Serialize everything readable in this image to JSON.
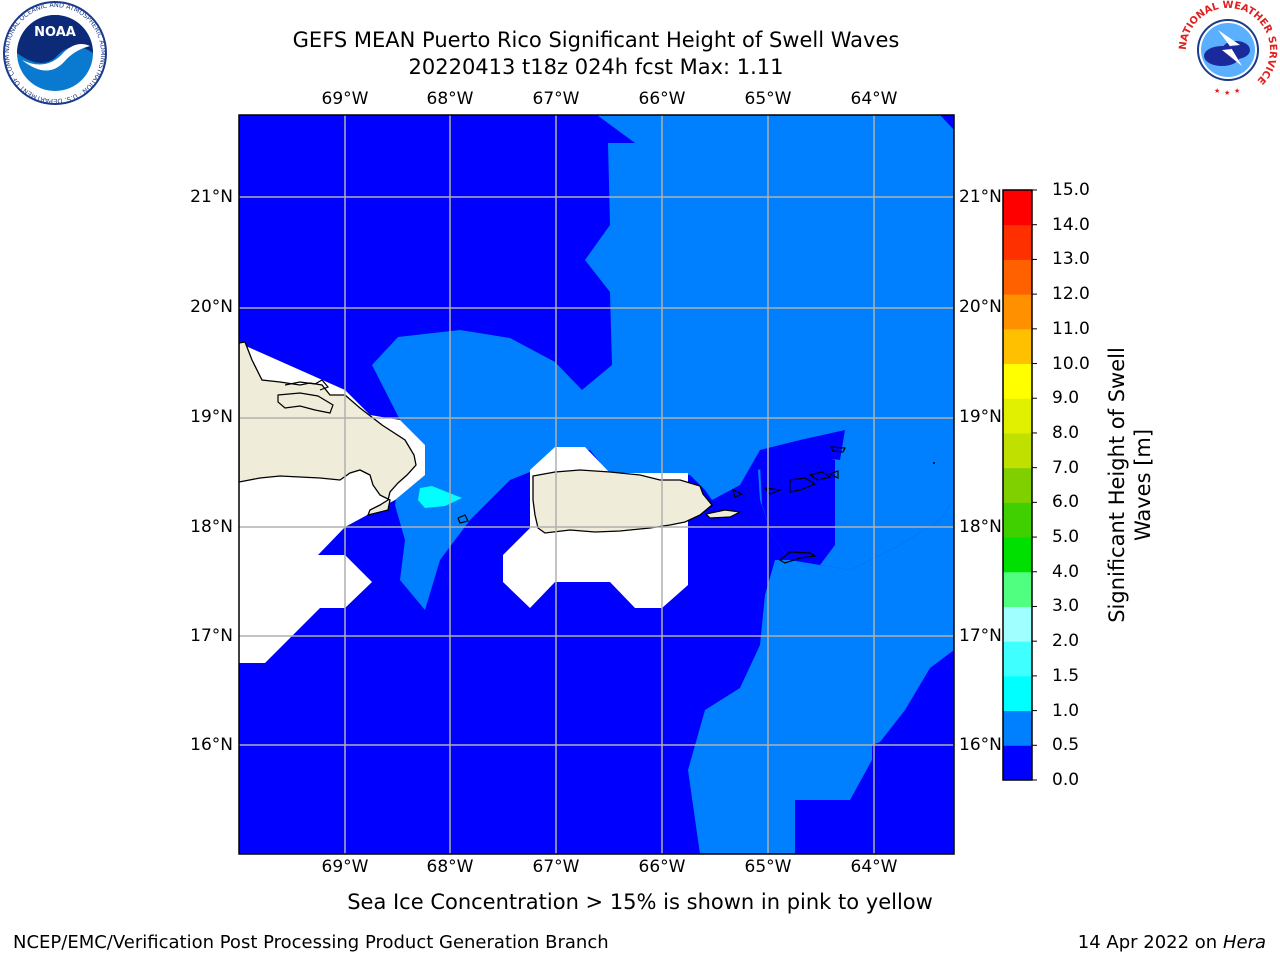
{
  "header": {
    "title_line1": "GEFS MEAN Puerto Rico Significant Height of Swell Waves",
    "title_line2": "20220413 t18z 024h fcst   Max: 1.11"
  },
  "map": {
    "lon_labels": [
      "69°W",
      "68°W",
      "67°W",
      "66°W",
      "65°W",
      "64°W"
    ],
    "lat_labels": [
      "21°N",
      "20°N",
      "19°N",
      "18°N",
      "17°N",
      "16°N"
    ],
    "colors": {
      "land": "#efedda",
      "swell_0_0_5": "#0000ff",
      "swell_0_5_1_0": "#0080ff",
      "swell_1_0_1_5": "#00ffff",
      "grid": "#b0b0b0",
      "coast": "#000000"
    }
  },
  "colorbar": {
    "label_line1": "Significant Height of Swell",
    "label_line2": "Waves [m]",
    "ticks": [
      "15.0",
      "14.0",
      "13.0",
      "12.0",
      "11.0",
      "10.0",
      "9.0",
      "8.0",
      "7.0",
      "6.0",
      "5.0",
      "4.0",
      "3.0",
      "2.0",
      "1.5",
      "1.0",
      "0.5",
      "0.0"
    ],
    "colors": [
      "#0000ff",
      "#0080ff",
      "#00ffff",
      "#40ffff",
      "#a0ffff",
      "#50ff80",
      "#00e000",
      "#40d000",
      "#80d000",
      "#c0e000",
      "#e0f000",
      "#ffff00",
      "#ffc000",
      "#ff9000",
      "#ff6000",
      "#ff3000",
      "#ff0000"
    ]
  },
  "note": "Sea Ice Concentration > 15% is shown in pink to yellow",
  "footer": {
    "left": "NCEP/EMC/Verification Post Processing Product Generation Branch",
    "right_prefix": "14 Apr 2022 on ",
    "right_host": "Hera"
  },
  "logos": {
    "noaa_text": "NOAA",
    "noaa_ring_text": "NATIONAL OCEANIC AND ATMOSPHERIC ADMINISTRATION · U.S. DEPARTMENT OF COMMERCE",
    "nws_ring_text": "NATIONAL WEATHER SERVICE"
  }
}
